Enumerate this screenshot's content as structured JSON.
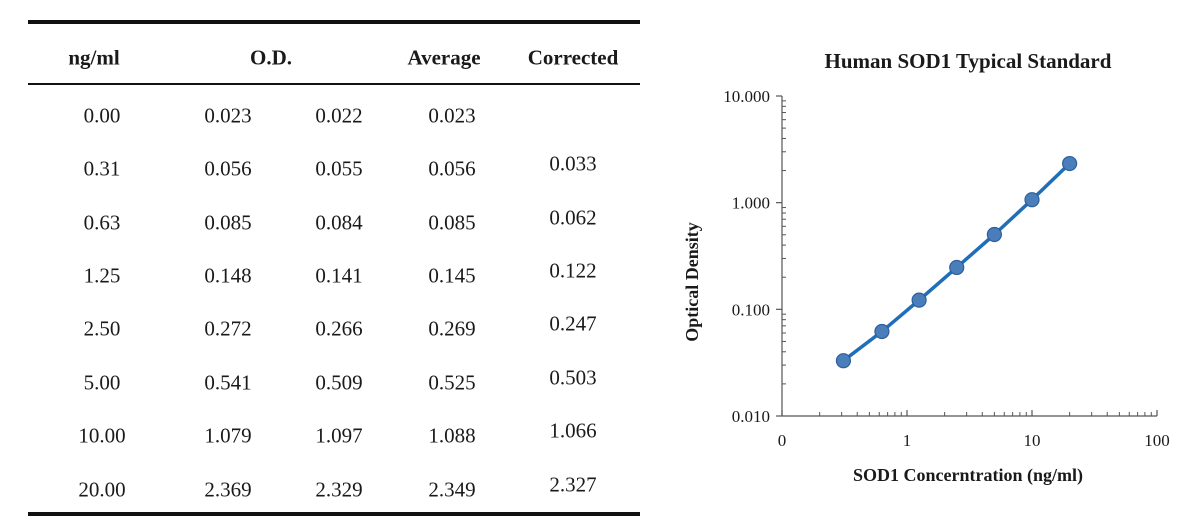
{
  "table": {
    "headers": {
      "conc": "ng/ml",
      "od": "O.D.",
      "average": "Average",
      "corrected": "Corrected"
    },
    "rows": [
      {
        "conc": "0.00",
        "od1": "0.023",
        "od2": "0.022",
        "average": "0.023",
        "corrected": ""
      },
      {
        "conc": "0.31",
        "od1": "0.056",
        "od2": "0.055",
        "average": "0.056",
        "corrected": "0.033"
      },
      {
        "conc": "0.63",
        "od1": "0.085",
        "od2": "0.084",
        "average": "0.085",
        "corrected": "0.062"
      },
      {
        "conc": "1.25",
        "od1": "0.148",
        "od2": "0.141",
        "average": "0.145",
        "corrected": "0.122"
      },
      {
        "conc": "2.50",
        "od1": "0.272",
        "od2": "0.266",
        "average": "0.269",
        "corrected": "0.247"
      },
      {
        "conc": "5.00",
        "od1": "0.541",
        "od2": "0.509",
        "average": "0.525",
        "corrected": "0.503"
      },
      {
        "conc": "10.00",
        "od1": "1.079",
        "od2": "1.097",
        "average": "1.088",
        "corrected": "1.066"
      },
      {
        "conc": "20.00",
        "od1": "2.369",
        "od2": "2.329",
        "average": "2.349",
        "corrected": "2.327"
      }
    ]
  },
  "chart_data": {
    "type": "scatter",
    "title": "Human SOD1 Typical Standard",
    "xlabel": "SOD1 Concerntration (ng/ml)",
    "ylabel": "Optical Density",
    "x_scale": "log",
    "y_scale": "log",
    "xlim": [
      0.1,
      100
    ],
    "ylim": [
      0.01,
      10
    ],
    "x_ticks": [
      0.1,
      1,
      10,
      100
    ],
    "x_tick_labels": [
      "0",
      "1",
      "10",
      "100"
    ],
    "y_ticks": [
      10,
      1,
      0.1,
      0.01
    ],
    "y_tick_labels": [
      "10.000",
      "1.000",
      "0.100",
      "0.010"
    ],
    "grid": false,
    "legend": "none",
    "series": [
      {
        "x": [
          0.31,
          0.63,
          1.25,
          2.5,
          5,
          10,
          20
        ],
        "y": [
          0.033,
          0.062,
          0.122,
          0.247,
          0.503,
          1.066,
          2.327
        ],
        "fit_line": true,
        "marker_color": "#4a7ebb",
        "line_color": "#1f6fb8"
      }
    ]
  }
}
